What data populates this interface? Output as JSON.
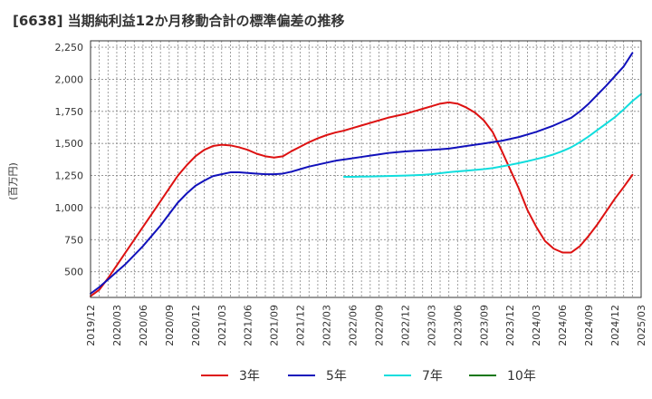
{
  "chart_data": {
    "type": "line",
    "title": "[6638]  当期純利益12か月移動合計の標準偏差の推移",
    "ylabel": "(百万円)",
    "xlabel": "",
    "ylim": [
      300,
      2300
    ],
    "yticks": [
      500,
      750,
      1000,
      1250,
      1500,
      1750,
      2000,
      2250
    ],
    "ytick_labels": [
      "500",
      "750",
      "1,000",
      "1,250",
      "1,500",
      "1,750",
      "2,000",
      "2,250"
    ],
    "x_start": "2019/12",
    "x_end": "2025/03",
    "xtick_labels": [
      "2019/12",
      "2020/03",
      "2020/06",
      "2020/09",
      "2020/12",
      "2021/03",
      "2021/06",
      "2021/09",
      "2021/12",
      "2022/03",
      "2022/06",
      "2022/09",
      "2022/12",
      "2023/03",
      "2023/06",
      "2023/09",
      "2023/12",
      "2024/03",
      "2024/06",
      "2024/09",
      "2024/12",
      "2025/03"
    ],
    "grid": true,
    "legend_position": "bottom",
    "series": [
      {
        "name": "3年",
        "color": "#dd1111",
        "start_index": 0,
        "values": [
          310,
          360,
          450,
          550,
          650,
          750,
          850,
          950,
          1050,
          1150,
          1250,
          1330,
          1400,
          1450,
          1480,
          1490,
          1485,
          1470,
          1450,
          1420,
          1400,
          1390,
          1400,
          1440,
          1475,
          1510,
          1540,
          1565,
          1585,
          1600,
          1620,
          1640,
          1660,
          1680,
          1700,
          1715,
          1730,
          1750,
          1770,
          1790,
          1810,
          1820,
          1810,
          1780,
          1740,
          1680,
          1590,
          1450,
          1300,
          1150,
          980,
          850,
          740,
          680,
          650,
          650,
          700,
          780,
          870,
          970,
          1070,
          1160,
          1255
        ]
      },
      {
        "name": "5年",
        "color": "#1111bb",
        "start_index": 0,
        "values": [
          330,
          380,
          440,
          500,
          560,
          630,
          700,
          780,
          860,
          950,
          1040,
          1110,
          1170,
          1210,
          1245,
          1260,
          1275,
          1275,
          1270,
          1265,
          1260,
          1260,
          1265,
          1280,
          1300,
          1320,
          1335,
          1350,
          1365,
          1375,
          1385,
          1395,
          1405,
          1415,
          1425,
          1432,
          1438,
          1442,
          1446,
          1450,
          1455,
          1460,
          1470,
          1480,
          1490,
          1500,
          1510,
          1520,
          1535,
          1550,
          1570,
          1590,
          1615,
          1640,
          1670,
          1700,
          1750,
          1810,
          1880,
          1950,
          2025,
          2100,
          2205
        ]
      },
      {
        "name": "7年",
        "color": "#11dddd",
        "start_index": 29,
        "values": [
          1240,
          1240,
          1242,
          1243,
          1244,
          1246,
          1248,
          1250,
          1252,
          1255,
          1260,
          1268,
          1276,
          1282,
          1288,
          1294,
          1300,
          1308,
          1320,
          1333,
          1347,
          1362,
          1378,
          1395,
          1415,
          1440,
          1470,
          1510,
          1555,
          1605,
          1655,
          1705,
          1765,
          1830,
          1885
        ]
      },
      {
        "name": "10年",
        "color": "#117711",
        "start_index": 0,
        "values": []
      }
    ]
  }
}
